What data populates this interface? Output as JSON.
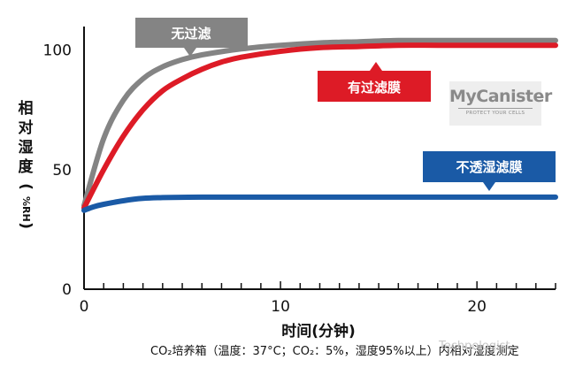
{
  "chart_data": {
    "type": "line",
    "title": "",
    "xlabel": "时间(分钟)",
    "ylabel_chars": [
      "相",
      "对",
      "湿",
      "度",
      "(",
      "%RH",
      ")"
    ],
    "xlim": [
      0,
      24
    ],
    "ylim": [
      0,
      108
    ],
    "xticks": [
      0,
      10,
      20
    ],
    "yticks": [
      0,
      50,
      100
    ],
    "grid": false,
    "series": [
      {
        "name": "无过滤",
        "color": "#848484",
        "x": [
          0,
          1,
          2,
          3,
          4,
          5,
          6,
          8,
          10,
          12,
          14,
          16,
          18,
          20,
          22,
          24
        ],
        "y": [
          35,
          63,
          79,
          88,
          93,
          96,
          98,
          100.5,
          102,
          103,
          103.5,
          104,
          104,
          104,
          104,
          104
        ]
      },
      {
        "name": "有过滤膜",
        "color": "#dd1b26",
        "x": [
          0,
          1,
          2,
          3,
          4,
          5,
          6,
          7,
          8,
          10,
          12,
          14,
          16,
          18,
          20,
          22,
          24
        ],
        "y": [
          34,
          50,
          64,
          75,
          83,
          88,
          92,
          95,
          97,
          99.5,
          101,
          101.5,
          102,
          102,
          102,
          102,
          102
        ]
      },
      {
        "name": "不透湿滤膜",
        "color": "#1a5aa6",
        "x": [
          0,
          0.5,
          1,
          2,
          3,
          4,
          6,
          8,
          12,
          16,
          20,
          24
        ],
        "y": [
          33,
          34.5,
          35.5,
          37,
          38,
          38.3,
          38.5,
          38.5,
          38.5,
          38.5,
          38.5,
          38.5
        ]
      }
    ]
  },
  "labels": {
    "no_filter": "无过滤",
    "with_filter": "有过滤膜",
    "impermeable": "不透湿滤膜"
  },
  "caption": "CO₂培养箱（温度：37°C；CO₂：5%，湿度95%以上）内相对湿度测定",
  "brand": {
    "name": "MyCanister",
    "tagline": "PROTECT YOUR CELLS"
  },
  "watermark": "Technologist",
  "colors": {
    "gray": "#848484",
    "red": "#dd1b26",
    "blue": "#1a5aa6",
    "axis": "#111111"
  }
}
